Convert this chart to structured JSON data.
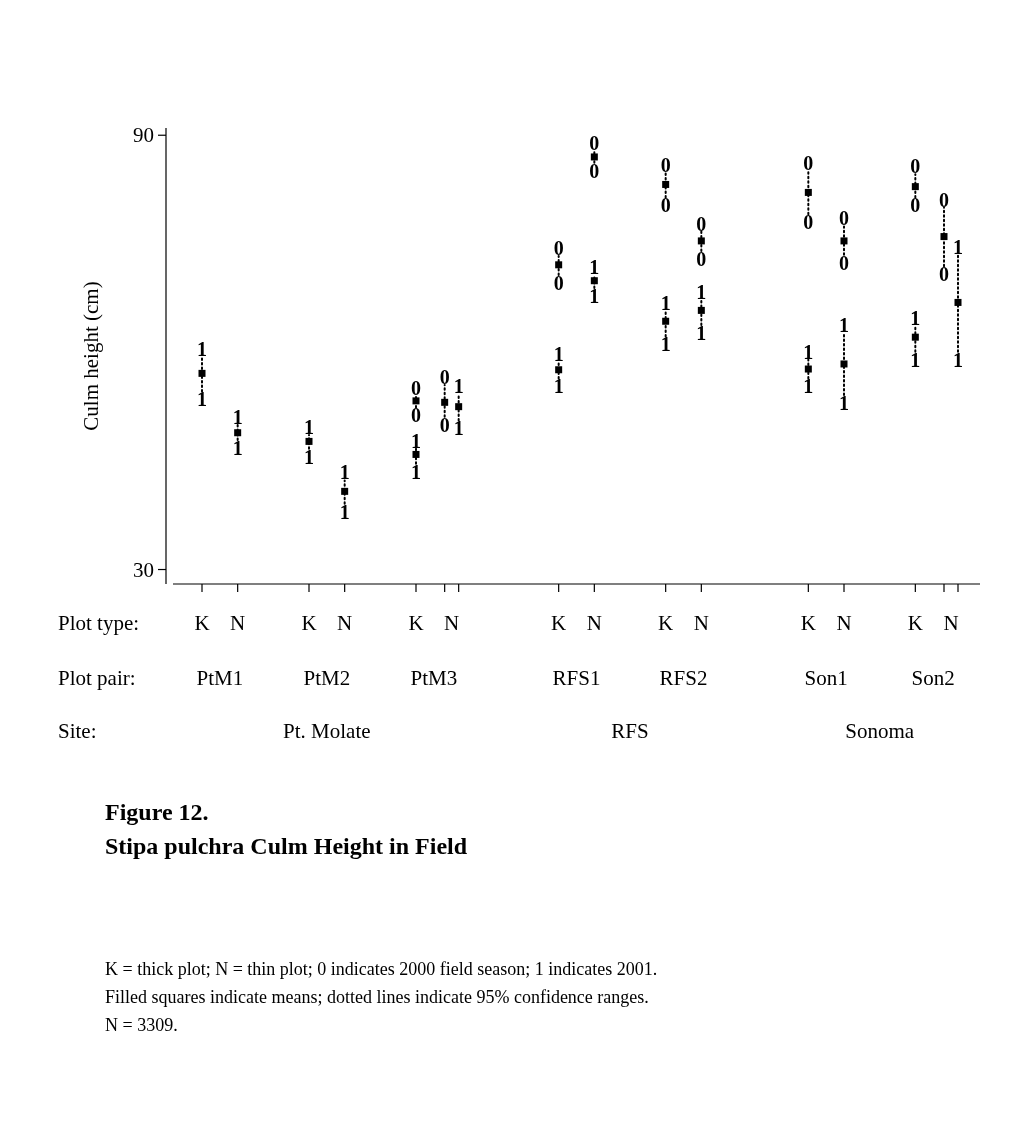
{
  "chart_data": {
    "type": "scatter",
    "title": "Figure 12.",
    "subtitle": "Stipa pulchra Culm Height in Field",
    "ylabel": "Culm height (cm)",
    "categories": [
      "K",
      "N",
      null,
      "K",
      "N",
      null,
      "K",
      "N",
      null,
      null,
      "K",
      "N",
      null,
      "K",
      "N",
      null,
      null,
      "K",
      "N",
      null,
      "K",
      "N"
    ],
    "ylim": [
      28,
      91
    ],
    "yticks": [
      30,
      90
    ],
    "marker": "square",
    "line_style": "dotted",
    "series": [
      {
        "name": "0",
        "color": "#000000",
        "values": [
          null,
          null,
          null,
          null,
          null,
          null,
          53.3,
          53.1,
          null,
          null,
          72.1,
          87.0,
          null,
          83.2,
          75.4,
          null,
          null,
          82.1,
          75.4,
          null,
          82.9,
          76.0
        ],
        "errors": [
          null,
          null,
          null,
          null,
          null,
          null,
          [
            52.4,
            54.0
          ],
          [
            51.1,
            55.5
          ],
          null,
          null,
          [
            70.7,
            73.3
          ],
          [
            86.2,
            87.8
          ],
          null,
          [
            81.4,
            84.8
          ],
          [
            74.0,
            76.7
          ],
          null,
          null,
          [
            79.1,
            85.1
          ],
          [
            73.5,
            77.4
          ],
          null,
          [
            81.4,
            84.6
          ],
          [
            71.9,
            80.0
          ]
        ]
      },
      {
        "name": "1",
        "color": "#000000",
        "values": [
          57.1,
          48.9,
          null,
          47.7,
          40.8,
          null,
          45.9,
          52.5,
          null,
          null,
          57.6,
          69.9,
          null,
          64.3,
          65.8,
          null,
          null,
          57.7,
          58.4,
          null,
          62.1,
          66.9
        ],
        "errors": [
          [
            54.6,
            59.3
          ],
          [
            47.9,
            50.0
          ],
          null,
          [
            46.7,
            48.6
          ],
          [
            39.1,
            42.3
          ],
          null,
          [
            44.6,
            46.7
          ],
          [
            50.6,
            54.3
          ],
          null,
          null,
          [
            56.4,
            58.7
          ],
          [
            68.9,
            70.7
          ],
          null,
          [
            62.2,
            65.7
          ],
          [
            63.8,
            67.3
          ],
          null,
          null,
          [
            56.4,
            59.0
          ],
          [
            54.1,
            62.7
          ],
          null,
          [
            60.1,
            63.6
          ],
          [
            60.1,
            73.5
          ]
        ]
      }
    ],
    "annotations": [
      "Plot type:",
      "Plot pair:",
      "Site:",
      "PtM1",
      "PtM2",
      "PtM3",
      "RFS1",
      "RFS2",
      "Son1",
      "Son2",
      "Pt. Molate",
      "RFS",
      "Sonoma",
      "K = thick plot; N = thin plot; 0 indicates 2000 field season; 1 indicates 2001.",
      "Filled squares indicate means; dotted lines indicate 95% confidence ranges.",
      "N = 3309."
    ]
  }
}
